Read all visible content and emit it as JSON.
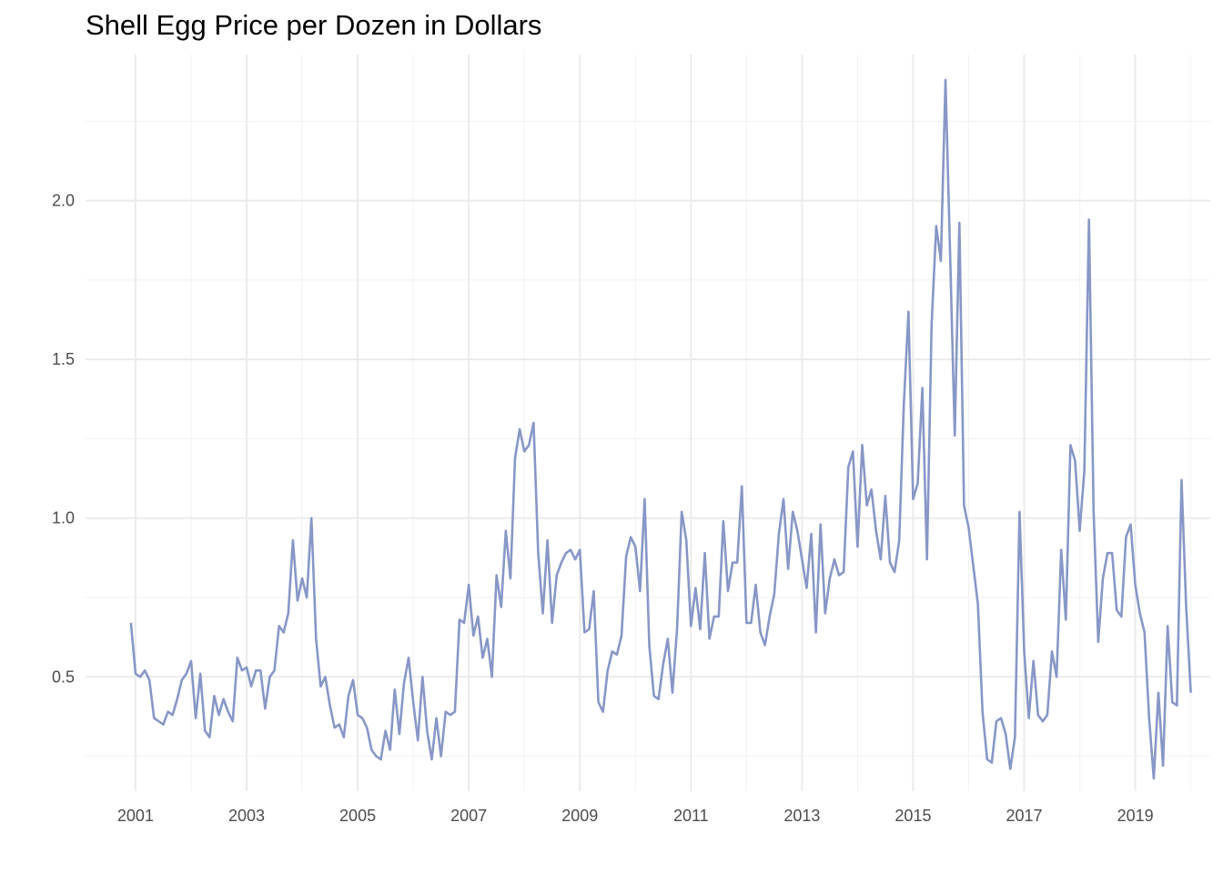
{
  "chart_data": {
    "type": "line",
    "title": "Shell Egg Price per Dozen in Dollars",
    "xlabel": "",
    "ylabel": "",
    "x_range": [
      2000.1,
      2020.35
    ],
    "ylim": [
      0.14,
      2.46
    ],
    "x_ticks": [
      2001,
      2003,
      2005,
      2007,
      2009,
      2011,
      2013,
      2015,
      2017,
      2019
    ],
    "y_ticks": [
      0.5,
      1.0,
      1.5,
      2.0
    ],
    "y_tick_labels": [
      "0.5",
      "1.0",
      "1.5",
      "2.0"
    ],
    "grid": true,
    "legend": "none",
    "line_color": "#8797c6",
    "series": [
      {
        "x_start": 2000.917,
        "x_step": 0.08333,
        "values": [
          0.67,
          0.51,
          0.5,
          0.52,
          0.49,
          0.37,
          0.36,
          0.35,
          0.39,
          0.38,
          0.43,
          0.49,
          0.51,
          0.55,
          0.37,
          0.51,
          0.33,
          0.31,
          0.44,
          0.38,
          0.43,
          0.39,
          0.36,
          0.56,
          0.52,
          0.53,
          0.47,
          0.52,
          0.52,
          0.4,
          0.5,
          0.52,
          0.66,
          0.64,
          0.7,
          0.93,
          0.74,
          0.81,
          0.75,
          1.0,
          0.62,
          0.47,
          0.5,
          0.41,
          0.34,
          0.35,
          0.31,
          0.44,
          0.49,
          0.38,
          0.37,
          0.34,
          0.27,
          0.25,
          0.24,
          0.33,
          0.27,
          0.46,
          0.32,
          0.48,
          0.56,
          0.42,
          0.3,
          0.5,
          0.33,
          0.24,
          0.37,
          0.25,
          0.39,
          0.38,
          0.39,
          0.68,
          0.67,
          0.79,
          0.63,
          0.69,
          0.56,
          0.62,
          0.5,
          0.82,
          0.72,
          0.96,
          0.81,
          1.19,
          1.28,
          1.21,
          1.23,
          1.3,
          0.89,
          0.7,
          0.93,
          0.67,
          0.82,
          0.86,
          0.89,
          0.9,
          0.87,
          0.9,
          0.64,
          0.65,
          0.77,
          0.42,
          0.39,
          0.52,
          0.58,
          0.57,
          0.63,
          0.88,
          0.94,
          0.91,
          0.77,
          1.06,
          0.6,
          0.44,
          0.43,
          0.54,
          0.62,
          0.45,
          0.65,
          1.02,
          0.93,
          0.66,
          0.78,
          0.65,
          0.89,
          0.62,
          0.69,
          0.69,
          0.99,
          0.77,
          0.86,
          0.86,
          1.1,
          0.67,
          0.67,
          0.79,
          0.64,
          0.6,
          0.69,
          0.76,
          0.95,
          1.06,
          0.84,
          1.02,
          0.96,
          0.87,
          0.78,
          0.95,
          0.64,
          0.98,
          0.7,
          0.81,
          0.87,
          0.82,
          0.83,
          1.16,
          1.21,
          0.91,
          1.23,
          1.04,
          1.09,
          0.96,
          0.87,
          1.07,
          0.86,
          0.83,
          0.93,
          1.36,
          1.65,
          1.06,
          1.11,
          1.41,
          0.87,
          1.61,
          1.92,
          1.81,
          2.38,
          1.83,
          1.26,
          1.93,
          1.04,
          0.97,
          0.85,
          0.73,
          0.39,
          0.24,
          0.23,
          0.36,
          0.37,
          0.32,
          0.21,
          0.31,
          1.02,
          0.58,
          0.37,
          0.55,
          0.38,
          0.36,
          0.38,
          0.58,
          0.5,
          0.9,
          0.68,
          1.23,
          1.18,
          0.96,
          1.15,
          1.94,
          1.02,
          0.61,
          0.81,
          0.89,
          0.89,
          0.71,
          0.69,
          0.94,
          0.98,
          0.79,
          0.7,
          0.64,
          0.37,
          0.18,
          0.45,
          0.22,
          0.66,
          0.42,
          0.41,
          1.12,
          0.72,
          0.45
        ]
      }
    ]
  }
}
